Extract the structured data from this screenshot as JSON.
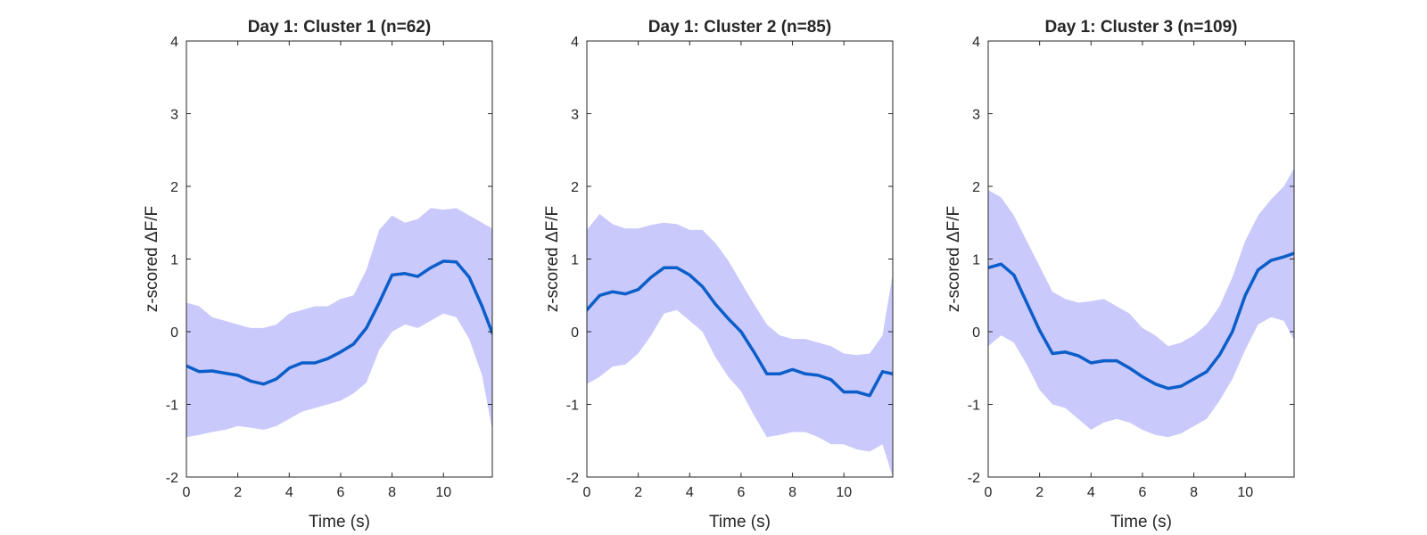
{
  "figure": {
    "background": "#ffffff"
  },
  "style": {
    "mean_color": "#0b5ec9",
    "band_color": "#c9c9fb",
    "axis_color": "#262626"
  },
  "chart_data": [
    {
      "type": "line",
      "title": "Day 1: Cluster 1 (n=62)",
      "xlabel": "Time (s)",
      "ylabel": "z-scored ΔF/F",
      "xlim": [
        0,
        11.9
      ],
      "ylim": [
        -2,
        4
      ],
      "xticks": [
        0,
        2,
        4,
        6,
        8,
        10
      ],
      "yticks": [
        -2,
        -1,
        0,
        1,
        2,
        3,
        4
      ],
      "grid": false,
      "series": [
        {
          "x": [
            0,
            0.5,
            1,
            1.5,
            2,
            2.5,
            3,
            3.5,
            4,
            4.5,
            5,
            5.5,
            6,
            6.5,
            7,
            7.5,
            8,
            8.5,
            9,
            9.5,
            10,
            10.5,
            11,
            11.5,
            11.9
          ],
          "mean": [
            -0.47,
            -0.55,
            -0.54,
            -0.57,
            -0.6,
            -0.68,
            -0.72,
            -0.65,
            -0.5,
            -0.43,
            -0.43,
            -0.37,
            -0.28,
            -0.17,
            0.05,
            0.4,
            0.78,
            0.8,
            0.76,
            0.88,
            0.97,
            0.96,
            0.75,
            0.35,
            -0.02
          ],
          "upper": [
            0.4,
            0.35,
            0.2,
            0.15,
            0.1,
            0.05,
            0.05,
            0.1,
            0.25,
            0.3,
            0.35,
            0.35,
            0.45,
            0.5,
            0.85,
            1.4,
            1.6,
            1.5,
            1.55,
            1.7,
            1.68,
            1.7,
            1.6,
            1.5,
            1.42
          ],
          "lower": [
            -1.45,
            -1.42,
            -1.38,
            -1.35,
            -1.3,
            -1.32,
            -1.35,
            -1.3,
            -1.2,
            -1.1,
            -1.05,
            -1.0,
            -0.95,
            -0.85,
            -0.7,
            -0.25,
            0.0,
            0.1,
            0.05,
            0.15,
            0.25,
            0.2,
            -0.1,
            -0.6,
            -1.35
          ]
        }
      ]
    },
    {
      "type": "line",
      "title": "Day 1: Cluster 2 (n=85)",
      "xlabel": "Time (s)",
      "ylabel": "z-scored ΔF/F",
      "xlim": [
        0,
        11.9
      ],
      "ylim": [
        -2,
        4
      ],
      "xticks": [
        0,
        2,
        4,
        6,
        8,
        10
      ],
      "yticks": [
        -2,
        -1,
        0,
        1,
        2,
        3,
        4
      ],
      "grid": false,
      "series": [
        {
          "x": [
            0,
            0.5,
            1,
            1.5,
            2,
            2.5,
            3,
            3.5,
            4,
            4.5,
            5,
            5.5,
            6,
            6.5,
            7,
            7.5,
            8,
            8.5,
            9,
            9.5,
            10,
            10.5,
            11,
            11.5,
            11.9
          ],
          "mean": [
            0.3,
            0.5,
            0.55,
            0.52,
            0.58,
            0.75,
            0.88,
            0.88,
            0.78,
            0.62,
            0.38,
            0.18,
            0.0,
            -0.28,
            -0.58,
            -0.58,
            -0.52,
            -0.58,
            -0.6,
            -0.66,
            -0.83,
            -0.83,
            -0.88,
            -0.55,
            -0.58
          ],
          "upper": [
            1.4,
            1.62,
            1.48,
            1.42,
            1.42,
            1.47,
            1.5,
            1.48,
            1.4,
            1.4,
            1.22,
            0.98,
            0.68,
            0.38,
            0.1,
            -0.05,
            -0.1,
            -0.1,
            -0.15,
            -0.2,
            -0.3,
            -0.32,
            -0.3,
            -0.05,
            0.8
          ],
          "lower": [
            -0.72,
            -0.62,
            -0.48,
            -0.45,
            -0.3,
            -0.05,
            0.25,
            0.3,
            0.15,
            0.0,
            -0.35,
            -0.62,
            -0.82,
            -1.15,
            -1.45,
            -1.42,
            -1.38,
            -1.38,
            -1.45,
            -1.55,
            -1.55,
            -1.62,
            -1.65,
            -1.55,
            -2.0
          ]
        }
      ]
    },
    {
      "type": "line",
      "title": "Day 1: Cluster 3 (n=109)",
      "xlabel": "Time (s)",
      "ylabel": "z-scored ΔF/F",
      "xlim": [
        0,
        11.9
      ],
      "ylim": [
        -2,
        4
      ],
      "xticks": [
        0,
        2,
        4,
        6,
        8,
        10
      ],
      "yticks": [
        -2,
        -1,
        0,
        1,
        2,
        3,
        4
      ],
      "grid": false,
      "series": [
        {
          "x": [
            0,
            0.5,
            1,
            1.5,
            2,
            2.5,
            3,
            3.5,
            4,
            4.5,
            5,
            5.5,
            6,
            6.5,
            7,
            7.5,
            8,
            8.5,
            9,
            9.5,
            10,
            10.5,
            11,
            11.5,
            11.9
          ],
          "mean": [
            0.88,
            0.93,
            0.78,
            0.4,
            0.02,
            -0.3,
            -0.28,
            -0.33,
            -0.43,
            -0.4,
            -0.4,
            -0.5,
            -0.62,
            -0.72,
            -0.78,
            -0.75,
            -0.65,
            -0.55,
            -0.32,
            0.0,
            0.5,
            0.85,
            0.98,
            1.03,
            1.08
          ],
          "upper": [
            1.95,
            1.85,
            1.6,
            1.25,
            0.9,
            0.55,
            0.45,
            0.4,
            0.42,
            0.45,
            0.35,
            0.25,
            0.05,
            -0.05,
            -0.2,
            -0.15,
            -0.05,
            0.1,
            0.35,
            0.75,
            1.25,
            1.6,
            1.82,
            2.0,
            2.25
          ],
          "lower": [
            -0.2,
            -0.05,
            -0.15,
            -0.45,
            -0.8,
            -1.0,
            -1.05,
            -1.2,
            -1.35,
            -1.25,
            -1.2,
            -1.25,
            -1.35,
            -1.42,
            -1.45,
            -1.4,
            -1.3,
            -1.2,
            -0.95,
            -0.65,
            -0.25,
            0.1,
            0.2,
            0.15,
            -0.12
          ]
        }
      ]
    }
  ]
}
